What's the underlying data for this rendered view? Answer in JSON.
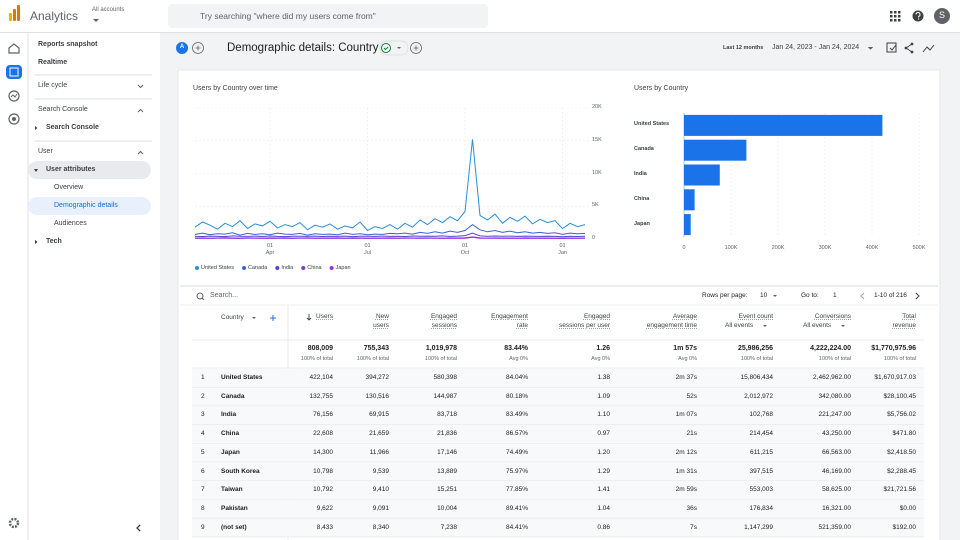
{
  "header": {
    "product": "Analytics",
    "account_label": "All accounts",
    "search_placeholder": "Try searching \"where did my users come from\"",
    "avatar": "S"
  },
  "sidebar": {
    "reports_snapshot": "Reports snapshot",
    "realtime": "Realtime",
    "life_cycle": "Life cycle",
    "search_console_section": "Search Console",
    "search_console_item": "Search Console",
    "user_section": "User",
    "user_attributes": "User attributes",
    "overview": "Overview",
    "demographic_details": "Demographic details",
    "audiences": "Audiences",
    "tech": "Tech"
  },
  "report": {
    "comparison_badge": "A",
    "title": "Demographic details: Country",
    "date_preset": "Last 12 months",
    "date_range": "Jan 24, 2023 - Jan 24, 2024"
  },
  "chart_data": [
    {
      "type": "line",
      "title": "Users by Country over time",
      "categories": [
        null,
        null,
        null,
        null,
        null,
        null,
        null,
        null,
        null,
        null,
        "01\nApr",
        null,
        null,
        null,
        null,
        null,
        null,
        null,
        null,
        null,
        null,
        null,
        null,
        "01\nJul",
        null,
        null,
        null,
        null,
        null,
        null,
        null,
        null,
        null,
        null,
        null,
        null,
        "01\nOct",
        null,
        null,
        null,
        null,
        null,
        null,
        null,
        null,
        null,
        null,
        null,
        null,
        "01\nJan",
        null,
        null,
        null
      ],
      "series": [
        {
          "name": "United States",
          "color": "#2b8ed6",
          "values": [
            1800,
            2600,
            2100,
            1500,
            2400,
            1900,
            2800,
            1600,
            2300,
            2000,
            2700,
            1700,
            2200,
            1900,
            2500,
            1400,
            2100,
            1800,
            2300,
            1500,
            2000,
            1700,
            2600,
            1300,
            1900,
            1600,
            2200,
            1500,
            2400,
            1800,
            2900,
            2200,
            3100,
            2500,
            3400,
            2800,
            4200,
            15200,
            3600,
            2900,
            3800,
            2400,
            3300,
            2700,
            3500,
            2300,
            3000,
            2500,
            2800,
            1600,
            2400,
            1900,
            2200
          ]
        },
        {
          "name": "Canada",
          "color": "#3c5fd8",
          "values": [
            700,
            900,
            650,
            800,
            750,
            950,
            600,
            850,
            700,
            800,
            650,
            900,
            750,
            700,
            850,
            600,
            800,
            700,
            750,
            650,
            900,
            700,
            800,
            650,
            750,
            700,
            850,
            800,
            900,
            750,
            1000,
            850,
            1100,
            900,
            1200,
            1000,
            1300,
            2200,
            1400,
            1100,
            1300,
            1000,
            1200,
            950,
            1100,
            900,
            1000,
            850,
            950,
            700,
            900,
            800,
            850
          ]
        },
        {
          "name": "India",
          "color": "#5b3fd1",
          "values": [
            420,
            380,
            450,
            400,
            360,
            470,
            410,
            390,
            440,
            380,
            460,
            400,
            370,
            430,
            410,
            390,
            450,
            380,
            420,
            400,
            440,
            370,
            410,
            430,
            390,
            450,
            400,
            420,
            380,
            460,
            410,
            440,
            430,
            470,
            400,
            450,
            520,
            900,
            480,
            430,
            460,
            410,
            440,
            400,
            450,
            420,
            390,
            430,
            400,
            350,
            420,
            380,
            410
          ]
        },
        {
          "name": "China",
          "color": "#7b3fc4",
          "values": [
            150,
            170,
            140,
            160,
            180,
            150,
            130,
            170,
            160,
            140,
            175,
            150,
            165,
            145,
            155,
            170,
            140,
            160,
            150,
            165,
            145,
            170,
            155,
            140,
            160,
            150,
            175,
            145,
            165,
            155,
            150,
            170,
            160,
            145,
            175,
            150,
            180,
            320,
            170,
            155,
            165,
            150,
            160,
            145,
            170,
            155,
            150,
            160,
            145,
            130,
            150,
            140,
            155
          ]
        },
        {
          "name": "Japan",
          "color": "#9334e6",
          "values": [
            90,
            110,
            85,
            100,
            120,
            95,
            80,
            105,
            100,
            90,
            115,
            95,
            105,
            85,
            100,
            110,
            90,
            100,
            95,
            105,
            85,
            110,
            95,
            90,
            100,
            95,
            115,
            85,
            105,
            100,
            95,
            110,
            100,
            90,
            115,
            95,
            120,
            260,
            110,
            100,
            105,
            95,
            100,
            90,
            110,
            95,
            90,
            100,
            95,
            80,
            95,
            90,
            100
          ]
        }
      ],
      "ylim": [
        0,
        20000
      ],
      "yticks": [
        0,
        {
          "value": 5000,
          "label": "5K"
        },
        {
          "value": 10000,
          "label": "10K"
        },
        {
          "value": 15000,
          "label": "15K"
        },
        {
          "value": 20000,
          "label": "20K"
        }
      ],
      "grid": true,
      "legend": "bottom"
    },
    {
      "type": "barh",
      "title": "Users by Country",
      "categories": [
        "United States",
        "Canada",
        "India",
        "China",
        "Japan"
      ],
      "values": [
        422104,
        132755,
        76156,
        22608,
        14300
      ],
      "color": "#1a73e8",
      "xlim": [
        0,
        500000
      ],
      "xticks": [
        0,
        {
          "value": 100000,
          "label": "100K"
        },
        {
          "value": 200000,
          "label": "200K"
        },
        {
          "value": 300000,
          "label": "300K"
        },
        {
          "value": 400000,
          "label": "400K"
        },
        {
          "value": 500000,
          "label": "500K"
        }
      ],
      "grid": true
    }
  ],
  "table": {
    "search_placeholder": "Search...",
    "rows_per_page_label": "Rows per page:",
    "rows_per_page": "10",
    "goto_label": "Go to:",
    "goto": "1",
    "range": "1-10 of 216",
    "columns": [
      {
        "label": "Country"
      },
      {
        "label": "Users"
      },
      {
        "label": "New\nusers"
      },
      {
        "label": "Engaged\nsessions"
      },
      {
        "label": "Engagement\nrate"
      },
      {
        "label": "Engaged\nsessions per user"
      },
      {
        "label": "Average\nengagement time"
      },
      {
        "label": "Event count",
        "filter": "All events"
      },
      {
        "label": "Conversions",
        "filter": "All events"
      },
      {
        "label": "Total\nrevenue"
      }
    ],
    "totals": [
      {
        "value": "808,009",
        "note": "100% of total"
      },
      {
        "value": "755,343",
        "note": "100% of total"
      },
      {
        "value": "1,019,978",
        "note": "100% of total"
      },
      {
        "value": "83.44%",
        "note": "Avg 0%"
      },
      {
        "value": "1.26",
        "note": "Avg 0%"
      },
      {
        "value": "1m 57s",
        "note": "Avg 0%"
      },
      {
        "value": "25,986,256",
        "note": "100% of total"
      },
      {
        "value": "4,222,224.00",
        "note": "100% of total"
      },
      {
        "value": "$1,770,975.96",
        "note": "100% of total"
      }
    ],
    "rows": [
      [
        "1",
        "United States",
        "422,104",
        "394,272",
        "580,398",
        "84.04%",
        "1.38",
        "2m 37s",
        "15,806,434",
        "2,462,962.00",
        "$1,670,917.03"
      ],
      [
        "2",
        "Canada",
        "132,755",
        "130,516",
        "144,987",
        "80.18%",
        "1.09",
        "52s",
        "2,012,972",
        "342,080.00",
        "$28,100.45"
      ],
      [
        "3",
        "India",
        "76,156",
        "69,915",
        "83,718",
        "83.49%",
        "1.10",
        "1m 07s",
        "102,768",
        "221,247.00",
        "$5,756.02"
      ],
      [
        "4",
        "China",
        "22,608",
        "21,659",
        "21,836",
        "86.57%",
        "0.97",
        "21s",
        "214,454",
        "43,250.00",
        "$471.80"
      ],
      [
        "5",
        "Japan",
        "14,300",
        "11,966",
        "17,146",
        "74.49%",
        "1.20",
        "2m 12s",
        "611,215",
        "66,563.00",
        "$2,418.50"
      ],
      [
        "6",
        "South Korea",
        "10,798",
        "9,539",
        "13,889",
        "75.97%",
        "1.29",
        "1m 31s",
        "397,515",
        "46,169.00",
        "$2,288.45"
      ],
      [
        "7",
        "Taiwan",
        "10,792",
        "9,410",
        "15,251",
        "77.85%",
        "1.41",
        "2m 59s",
        "553,003",
        "58,625.00",
        "$21,721.56"
      ],
      [
        "8",
        "Pakistan",
        "9,622",
        "9,091",
        "10,004",
        "89.41%",
        "1.04",
        "36s",
        "176,834",
        "16,321.00",
        "$0.00"
      ],
      [
        "9",
        "(not set)",
        "8,433",
        "8,340",
        "7,238",
        "84.41%",
        "0.86",
        "7s",
        "1,147,299",
        "521,359.00",
        "$192.00"
      ]
    ]
  }
}
